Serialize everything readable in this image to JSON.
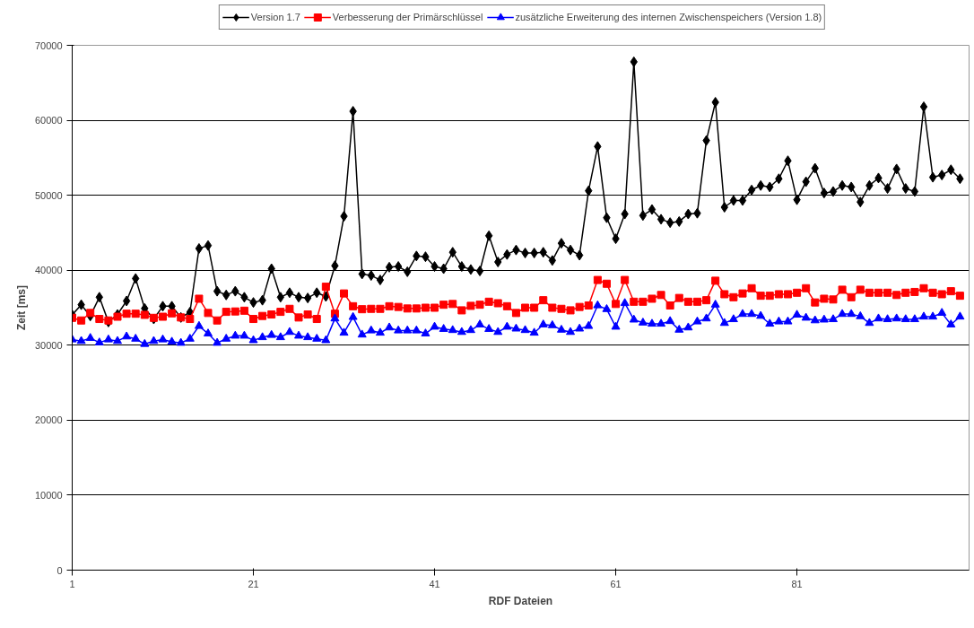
{
  "chart_data": {
    "type": "line",
    "xlabel": "RDF Dateien",
    "ylabel": "Zeit [ms]",
    "x": [
      1,
      2,
      3,
      4,
      5,
      6,
      7,
      8,
      9,
      10,
      11,
      12,
      13,
      14,
      15,
      16,
      17,
      18,
      19,
      20,
      21,
      22,
      23,
      24,
      25,
      26,
      27,
      28,
      29,
      30,
      31,
      32,
      33,
      34,
      35,
      36,
      37,
      38,
      39,
      40,
      41,
      42,
      43,
      44,
      45,
      46,
      47,
      48,
      49,
      50,
      51,
      52,
      53,
      54,
      55,
      56,
      57,
      58,
      59,
      60,
      61,
      62,
      63,
      64,
      65,
      66,
      67,
      68,
      69,
      70,
      71,
      72,
      73,
      74,
      75,
      76,
      77,
      78,
      79,
      80,
      81,
      82,
      83,
      84,
      85,
      86,
      87,
      88,
      89,
      90,
      91,
      92,
      93,
      94,
      95,
      96,
      97,
      98,
      99
    ],
    "xlim": [
      1,
      100
    ],
    "xticks": [
      1,
      21,
      41,
      61,
      81
    ],
    "ylim": [
      0,
      70000
    ],
    "yticks": [
      0,
      10000,
      20000,
      30000,
      40000,
      50000,
      60000,
      70000
    ],
    "grid": "y",
    "legend": "top",
    "line_style": "solid",
    "series": [
      {
        "name": "Version 1.7",
        "color": "#000000",
        "marker": "diamond",
        "values": [
          34050,
          35400,
          33900,
          36400,
          33100,
          34100,
          35900,
          38900,
          34900,
          33500,
          35200,
          35200,
          33700,
          34400,
          42900,
          43300,
          37200,
          36700,
          37200,
          36400,
          35700,
          36000,
          40200,
          36400,
          37000,
          36400,
          36300,
          37000,
          36500,
          40600,
          47200,
          61200,
          39500,
          39300,
          38700,
          40400,
          40500,
          39800,
          41900,
          41800,
          40500,
          40200,
          42400,
          40500,
          40100,
          39900,
          44600,
          41100,
          42100,
          42700,
          42300,
          42300,
          42400,
          41300,
          43600,
          42700,
          42000,
          50600,
          56500,
          47000,
          44200,
          47500,
          67800,
          47300,
          48100,
          46800,
          46350,
          46500,
          47500,
          47600,
          57300,
          62400,
          48400,
          49300,
          49300,
          50700,
          51300,
          51100,
          52200,
          54600,
          49400,
          51800,
          53600,
          50300,
          50500,
          51300,
          51100,
          49100,
          51300,
          52300,
          50900,
          53500,
          50900,
          50500,
          61800,
          52400,
          52700,
          53400,
          52200
        ]
      },
      {
        "name": "Verbesserung der Primärschlüssel",
        "color": "#ff0000",
        "marker": "square",
        "values": [
          33650,
          33300,
          34300,
          33500,
          33300,
          33800,
          34200,
          34200,
          34050,
          33650,
          33800,
          34250,
          33700,
          33500,
          36200,
          34300,
          33300,
          34450,
          34500,
          34600,
          33500,
          33900,
          34100,
          34450,
          34850,
          33700,
          34100,
          33500,
          37800,
          34200,
          36900,
          35200,
          34800,
          34850,
          34850,
          35200,
          35100,
          34900,
          34900,
          35000,
          35000,
          35400,
          35500,
          34650,
          35250,
          35400,
          35800,
          35600,
          35200,
          34300,
          35000,
          35000,
          36000,
          35000,
          34850,
          34650,
          35100,
          35300,
          38700,
          38200,
          35500,
          38700,
          35800,
          35800,
          36200,
          36700,
          35300,
          36300,
          35800,
          35800,
          36000,
          38600,
          36800,
          36400,
          36900,
          37600,
          36600,
          36600,
          36800,
          36800,
          37000,
          37600,
          35700,
          36200,
          36100,
          37400,
          36400,
          37400,
          37000,
          37000,
          37000,
          36700,
          37000,
          37100,
          37600,
          37000,
          36800,
          37200,
          36600
        ]
      },
      {
        "name": "zusätzliche Erweiterung des internen Zwischenspeichers (Version 1.8)",
        "color": "#0000ff",
        "marker": "triangle",
        "values": [
          30750,
          30550,
          30950,
          30350,
          30750,
          30550,
          31150,
          30850,
          30150,
          30550,
          30750,
          30450,
          30300,
          30850,
          32550,
          31550,
          30300,
          30850,
          31250,
          31250,
          30650,
          31050,
          31350,
          31050,
          31750,
          31250,
          31050,
          30850,
          30650,
          33550,
          31650,
          33750,
          31400,
          31950,
          31650,
          32350,
          31950,
          31950,
          31950,
          31550,
          32450,
          32150,
          32000,
          31750,
          32000,
          32750,
          32150,
          31750,
          32450,
          32200,
          32000,
          31650,
          32750,
          32650,
          32050,
          31750,
          32200,
          32550,
          35300,
          34800,
          32450,
          35600,
          33400,
          33000,
          32850,
          32850,
          33200,
          32050,
          32350,
          33150,
          33550,
          35400,
          32950,
          33450,
          34150,
          34150,
          33900,
          32850,
          33150,
          33150,
          34050,
          33650,
          33300,
          33400,
          33450,
          34150,
          34150,
          33850,
          32950,
          33550,
          33450,
          33550,
          33450,
          33450,
          33800,
          33800,
          34300,
          32750,
          33800
        ]
      }
    ]
  }
}
